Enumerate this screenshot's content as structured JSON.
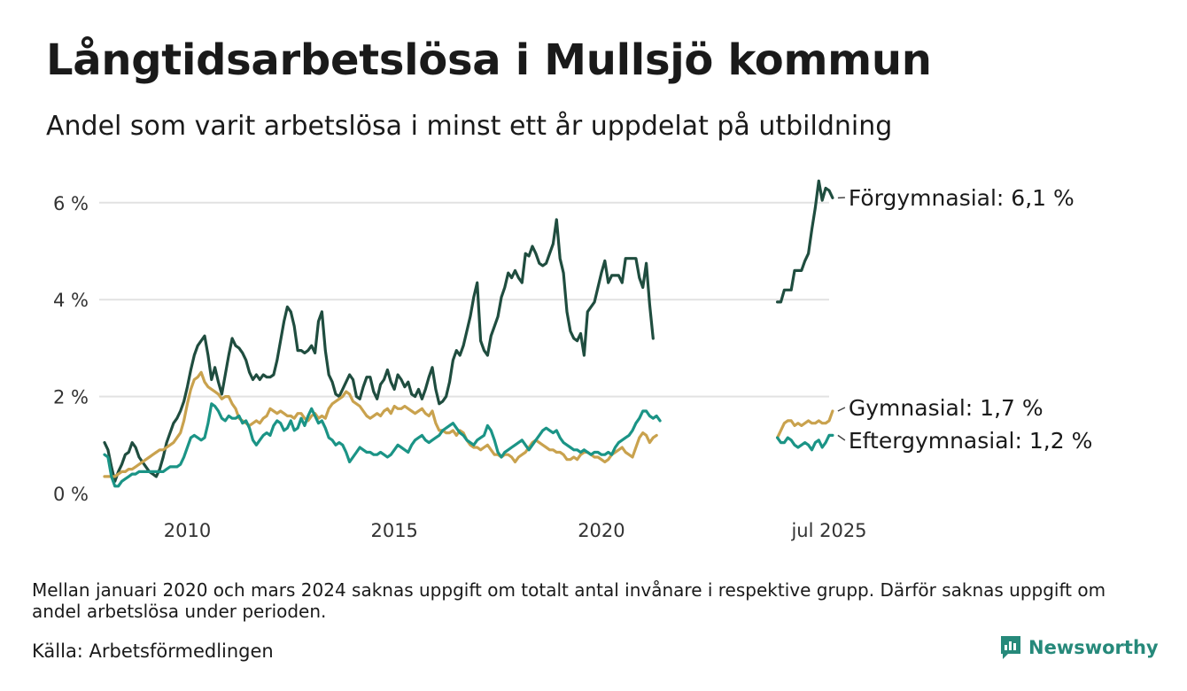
{
  "title": "Långtidsarbetslösa i Mullsjö kommun",
  "subtitle": "Andel som varit arbetslösa i minst ett år uppdelat på utbildning",
  "footnote": "Mellan januari 2020 och mars 2024 saknas uppgift om totalt antal invånare i respektive grupp. Därför saknas uppgift om andel arbetslösa under perioden.",
  "source": "Källa: Arbetsförmedlingen",
  "brand": {
    "name": "Newsworthy",
    "icon": "newsworthy-logo-icon",
    "color": "#26897a"
  },
  "chart_data": {
    "type": "line",
    "ylim": [
      0,
      6.8
    ],
    "yticks": [
      0,
      2,
      4,
      6
    ],
    "ytick_labels": [
      "0 %",
      "2 %",
      "4 %",
      "6 %"
    ],
    "xticks": [
      {
        "x": "2010-01",
        "label": "2010"
      },
      {
        "x": "2015-01",
        "label": "2015"
      },
      {
        "x": "2020-01",
        "label": "2020"
      },
      {
        "x": "2025-07",
        "label": "jul 2025"
      }
    ],
    "x_range": [
      "2008-01",
      "2025-07"
    ],
    "grid": true,
    "legend": "direct labels at line ends",
    "series": [
      {
        "name": "Förgymnasial",
        "end_label": "Förgymnasial: 6,1 %",
        "color": "#1f4d3f",
        "segments": [
          {
            "start": "2008-01",
            "values": [
              1.05,
              0.9,
              0.55,
              0.25,
              0.45,
              0.6,
              0.8,
              0.85,
              1.05,
              0.95,
              0.75,
              0.65,
              0.55,
              0.45,
              0.4,
              0.35,
              0.5,
              0.75,
              1.05,
              1.25,
              1.45,
              1.55,
              1.7,
              1.9,
              2.2,
              2.55,
              2.85,
              3.05,
              3.15,
              3.25,
              2.85,
              2.35,
              2.6,
              2.3,
              2.05,
              2.45,
              2.85,
              3.2,
              3.05,
              3.0,
              2.9,
              2.75,
              2.5,
              2.35,
              2.45,
              2.35,
              2.45,
              2.4,
              2.4,
              2.45,
              2.75,
              3.15,
              3.55,
              3.85,
              3.75,
              3.45,
              2.95,
              2.95,
              2.9,
              2.95,
              3.05,
              2.9,
              3.55,
              3.75,
              2.95,
              2.45,
              2.3,
              2.05,
              2.0,
              2.15,
              2.3,
              2.45,
              2.35,
              2.0,
              1.95,
              2.2,
              2.4,
              2.4,
              2.1,
              1.95,
              2.25,
              2.35,
              2.55,
              2.3,
              2.15,
              2.45,
              2.35,
              2.2,
              2.3,
              2.05,
              2.0,
              2.15,
              1.95,
              2.15,
              2.4,
              2.6,
              2.15,
              1.85,
              1.9,
              2.0,
              2.3,
              2.75,
              2.95,
              2.85,
              3.05,
              3.35,
              3.65,
              4.05,
              4.35,
              3.15,
              2.95,
              2.85,
              3.25,
              3.45,
              3.65,
              4.05,
              4.25,
              4.55,
              4.45,
              4.6,
              4.45,
              4.35,
              4.95,
              4.9,
              5.1,
              4.95,
              4.75,
              4.7,
              4.75,
              4.95,
              5.15,
              5.65,
              4.85,
              4.55,
              3.75,
              3.35,
              3.2,
              3.15,
              3.3,
              2.85,
              3.75,
              3.85,
              3.95,
              4.25,
              4.55,
              4.8,
              4.35,
              4.5,
              4.5,
              4.5,
              4.35,
              4.85,
              4.85,
              4.85,
              4.85,
              4.45,
              4.25,
              4.75,
              3.9,
              3.2
            ]
          },
          {
            "start": "2024-04",
            "values": [
              3.95,
              3.95,
              4.2,
              4.2,
              4.2,
              4.6,
              4.6,
              4.6,
              4.8,
              4.95,
              5.45,
              5.9,
              6.45,
              6.05,
              6.3,
              6.25,
              6.1
            ]
          }
        ]
      },
      {
        "name": "Gymnasial",
        "end_label": "Gymnasial: 1,7 %",
        "color": "#c9a24e",
        "segments": [
          {
            "start": "2008-01",
            "values": [
              0.35,
              0.35,
              0.35,
              0.35,
              0.4,
              0.45,
              0.45,
              0.5,
              0.5,
              0.55,
              0.6,
              0.65,
              0.7,
              0.75,
              0.8,
              0.85,
              0.9,
              0.9,
              0.95,
              1.0,
              1.05,
              1.15,
              1.25,
              1.5,
              1.85,
              2.15,
              2.35,
              2.4,
              2.5,
              2.3,
              2.2,
              2.15,
              2.1,
              2.05,
              1.95,
              2.0,
              2.0,
              1.85,
              1.75,
              1.55,
              1.5,
              1.45,
              1.4,
              1.45,
              1.5,
              1.45,
              1.55,
              1.6,
              1.75,
              1.7,
              1.65,
              1.7,
              1.65,
              1.6,
              1.6,
              1.55,
              1.65,
              1.65,
              1.55,
              1.5,
              1.6,
              1.65,
              1.55,
              1.6,
              1.55,
              1.75,
              1.85,
              1.9,
              1.95,
              2.0,
              2.1,
              2.05,
              1.9,
              1.85,
              1.8,
              1.7,
              1.6,
              1.55,
              1.6,
              1.65,
              1.6,
              1.7,
              1.75,
              1.65,
              1.8,
              1.75,
              1.75,
              1.8,
              1.75,
              1.7,
              1.65,
              1.7,
              1.75,
              1.65,
              1.6,
              1.7,
              1.45,
              1.3,
              1.3,
              1.25,
              1.25,
              1.3,
              1.2,
              1.3,
              1.25,
              1.1,
              1.0,
              0.95,
              0.95,
              0.9,
              0.95,
              1.0,
              0.9,
              0.8,
              0.8,
              0.75,
              0.8,
              0.8,
              0.75,
              0.65,
              0.75,
              0.8,
              0.85,
              0.95,
              1.05,
              1.1,
              1.05,
              1.0,
              0.95,
              0.9,
              0.9,
              0.85,
              0.85,
              0.8,
              0.7,
              0.7,
              0.75,
              0.7,
              0.8,
              0.85,
              0.85,
              0.8,
              0.75,
              0.75,
              0.7,
              0.65,
              0.7,
              0.8,
              0.85,
              0.9,
              0.95,
              0.85,
              0.8,
              0.75,
              0.95,
              1.15,
              1.25,
              1.2,
              1.05,
              1.15,
              1.2
            ]
          },
          {
            "start": "2024-04",
            "values": [
              1.15,
              1.3,
              1.45,
              1.5,
              1.5,
              1.4,
              1.45,
              1.4,
              1.45,
              1.5,
              1.45,
              1.45,
              1.5,
              1.45,
              1.45,
              1.5,
              1.7
            ]
          }
        ]
      },
      {
        "name": "Eftergymnasial",
        "end_label": "Eftergymnasial: 1,2 %",
        "color": "#1b9486",
        "segments": [
          {
            "start": "2008-01",
            "values": [
              0.8,
              0.75,
              0.35,
              0.15,
              0.15,
              0.25,
              0.3,
              0.35,
              0.4,
              0.4,
              0.45,
              0.45,
              0.45,
              0.45,
              0.45,
              0.45,
              0.45,
              0.45,
              0.5,
              0.55,
              0.55,
              0.55,
              0.6,
              0.75,
              0.95,
              1.15,
              1.2,
              1.15,
              1.1,
              1.15,
              1.45,
              1.85,
              1.8,
              1.7,
              1.55,
              1.5,
              1.6,
              1.55,
              1.55,
              1.6,
              1.45,
              1.5,
              1.35,
              1.1,
              1.0,
              1.1,
              1.2,
              1.25,
              1.2,
              1.4,
              1.5,
              1.45,
              1.3,
              1.35,
              1.5,
              1.3,
              1.35,
              1.55,
              1.4,
              1.6,
              1.75,
              1.6,
              1.45,
              1.5,
              1.35,
              1.15,
              1.1,
              1.0,
              1.05,
              1.0,
              0.85,
              0.65,
              0.75,
              0.85,
              0.95,
              0.9,
              0.85,
              0.85,
              0.8,
              0.8,
              0.85,
              0.8,
              0.75,
              0.8,
              0.9,
              1.0,
              0.95,
              0.9,
              0.85,
              1.0,
              1.1,
              1.15,
              1.2,
              1.1,
              1.05,
              1.1,
              1.15,
              1.2,
              1.3,
              1.35,
              1.4,
              1.45,
              1.35,
              1.25,
              1.2,
              1.1,
              1.05,
              1.0,
              1.1,
              1.15,
              1.2,
              1.4,
              1.3,
              1.1,
              0.85,
              0.75,
              0.85,
              0.9,
              0.95,
              1.0,
              1.05,
              1.1,
              1.0,
              0.9,
              1.0,
              1.1,
              1.2,
              1.3,
              1.35,
              1.3,
              1.25,
              1.3,
              1.15,
              1.05,
              1.0,
              0.95,
              0.9,
              0.9,
              0.85,
              0.9,
              0.85,
              0.8,
              0.85,
              0.85,
              0.8,
              0.8,
              0.85,
              0.8,
              0.95,
              1.05,
              1.1,
              1.15,
              1.2,
              1.3,
              1.45,
              1.55,
              1.7,
              1.7,
              1.6,
              1.55,
              1.6,
              1.5
            ]
          },
          {
            "start": "2024-04",
            "values": [
              1.15,
              1.05,
              1.05,
              1.15,
              1.1,
              1.0,
              0.95,
              1.0,
              1.05,
              1.0,
              0.9,
              1.05,
              1.1,
              0.95,
              1.05,
              1.2,
              1.2
            ]
          }
        ]
      }
    ]
  }
}
